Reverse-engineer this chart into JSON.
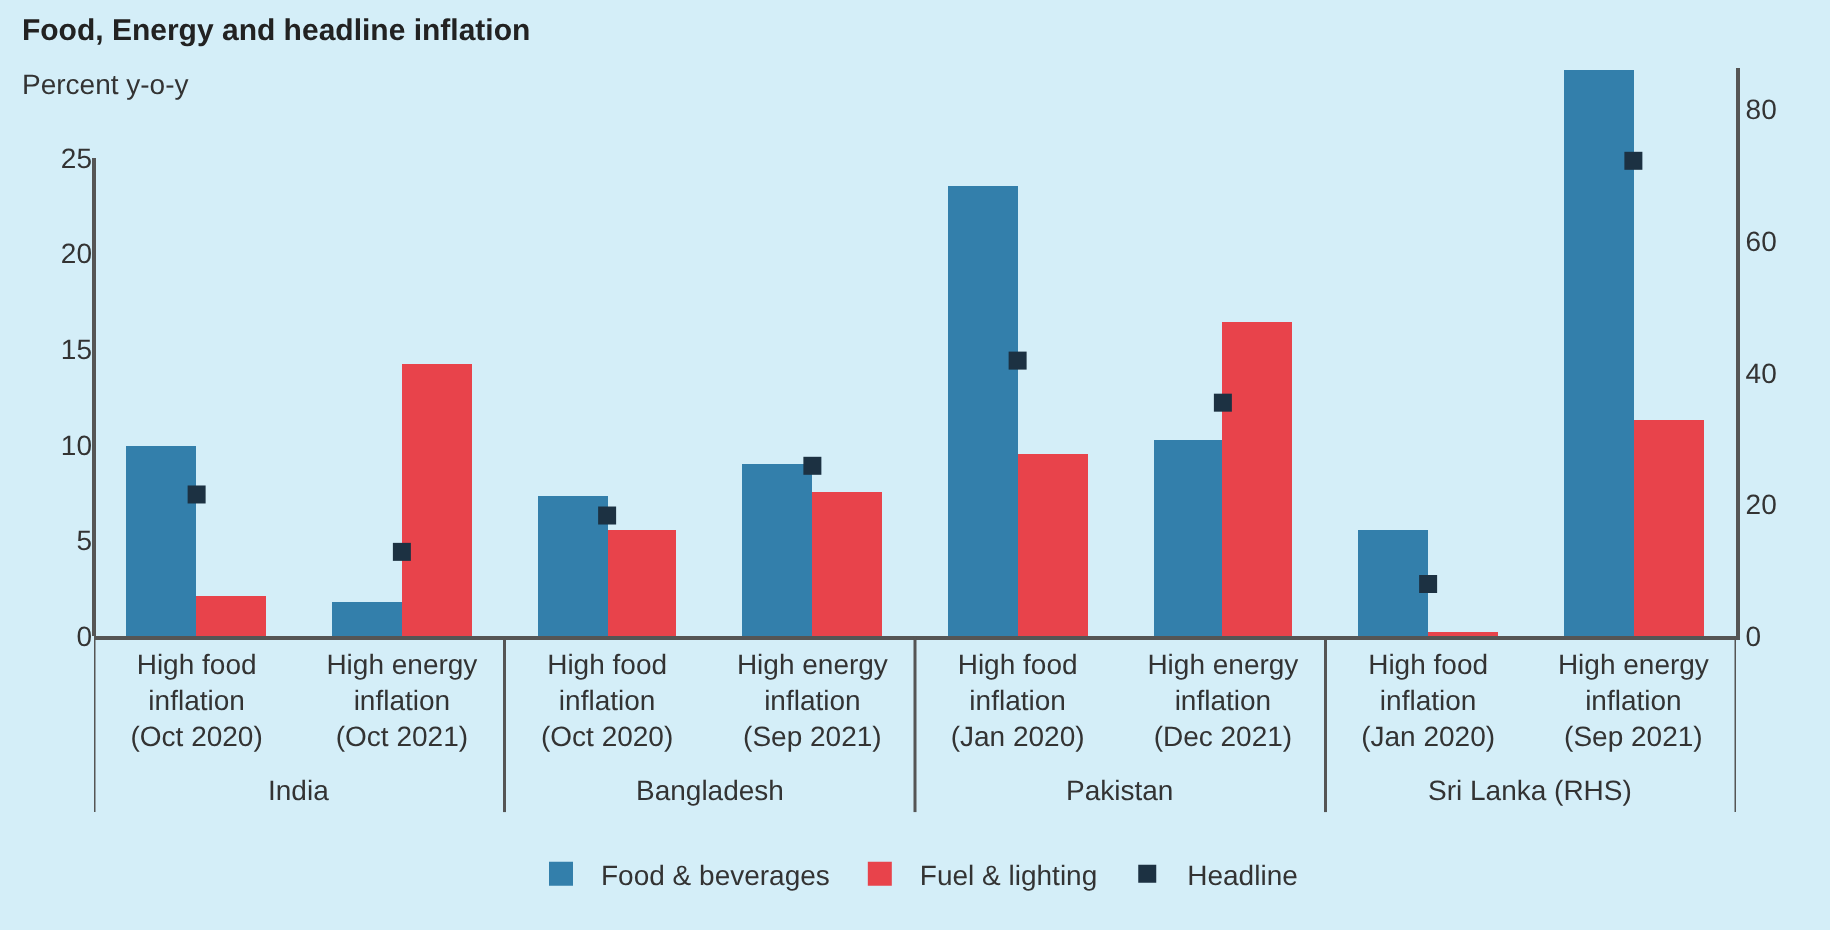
{
  "chart_data": {
    "type": "bar",
    "title": "Food, Energy and headline inflation",
    "subtitle": "Percent y-o-y",
    "categories": [
      "High food\ninflation\n(Oct 2020)",
      "High energy\ninflation\n(Oct 2021)",
      "High food\ninflation\n(Oct 2020)",
      "High energy\ninflation\n(Sep 2021)",
      "High food\ninflation\n(Jan 2020)",
      "High energy\ninflation\n(Dec 2021)",
      "High food\ninflation\n(Jan 2020)",
      "High energy\ninflation\n(Sep 2021)"
    ],
    "annotations": [
      "India",
      "Bangladesh",
      "Pakistan",
      "Sri Lanka (RHS)"
    ],
    "series": [
      {
        "name": "Food & beverages",
        "color": "#337fab",
        "values": [
          9.9,
          1.8,
          7.3,
          9.0,
          23.5,
          10.2,
          null,
          null
        ]
      },
      {
        "name": "Fuel & lighting",
        "color": "#e8434b",
        "values": [
          2.1,
          14.2,
          5.5,
          7.5,
          9.5,
          16.4,
          null,
          null
        ]
      },
      {
        "name": "Headline",
        "type": "scatter",
        "marker": "square",
        "color": "#1c3142",
        "values": [
          7.4,
          4.4,
          6.3,
          8.9,
          14.4,
          12.2,
          null,
          null
        ]
      },
      {
        "axis": "y2",
        "color": "#337fab",
        "values": [
          null,
          null,
          null,
          null,
          null,
          null,
          16.1,
          86.1
        ]
      },
      {
        "axis": "y2",
        "color": "#e8434b",
        "values": [
          null,
          null,
          null,
          null,
          null,
          null,
          0.7,
          32.9
        ]
      },
      {
        "axis": "y2",
        "type": "scatter",
        "marker": "square",
        "color": "#1c3142",
        "values": [
          null,
          null,
          null,
          null,
          null,
          null,
          7.9,
          72.2
        ]
      }
    ],
    "ylim": [
      0,
      29.7
    ],
    "yticks": [
      0,
      5,
      10,
      15,
      20,
      25
    ],
    "y2lim": [
      0,
      86.3
    ],
    "y2ticks": [
      0,
      20,
      40,
      60,
      80
    ],
    "grid": false,
    "legend": "bottom"
  }
}
